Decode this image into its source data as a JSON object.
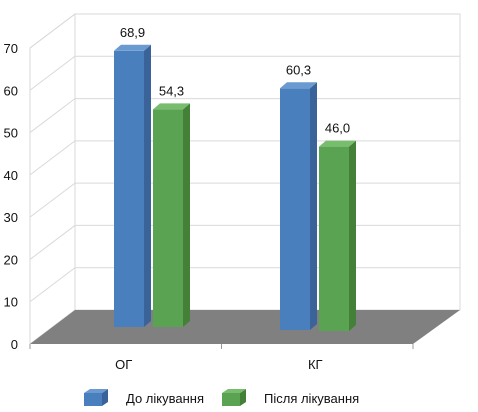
{
  "chart_data": {
    "type": "bar",
    "categories": [
      "ОГ",
      "КГ"
    ],
    "series": [
      {
        "name": "До лікування",
        "values": [
          68.9,
          60.3
        ],
        "labels": [
          "68,9",
          "60,3"
        ]
      },
      {
        "name": "Після лікування",
        "values": [
          54.3,
          46.0
        ],
        "labels": [
          "54,3",
          "46,0"
        ]
      }
    ],
    "ylim": [
      0,
      70
    ],
    "yticks": [
      "0",
      "10",
      "20",
      "30",
      "40",
      "50",
      "60",
      "70"
    ],
    "grid": true,
    "legend_position": "bottom",
    "style": "3d"
  },
  "colors": {
    "series": [
      {
        "front": "#4a7fbd",
        "side": "#3a6499",
        "top": "#6b9ad0"
      },
      {
        "front": "#5aa352",
        "side": "#448038",
        "top": "#78bd6e"
      }
    ],
    "floor": "#808080",
    "grid": "#d9d9d9"
  }
}
